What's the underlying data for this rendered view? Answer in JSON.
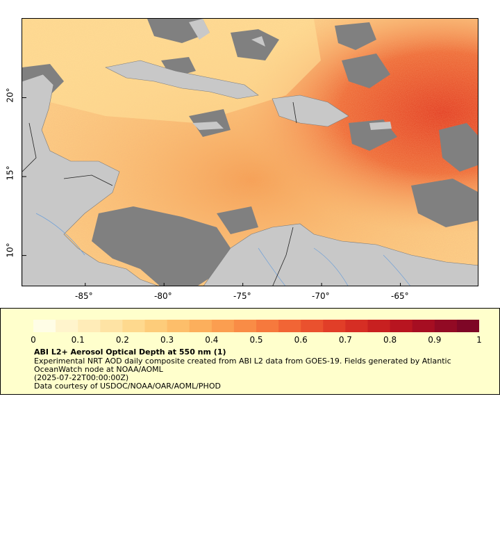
{
  "map": {
    "lon_ticks": [
      "-85°",
      "-80°",
      "-75°",
      "-70°",
      "-65°"
    ],
    "lat_ticks": [
      "20°",
      "15°",
      "10°"
    ],
    "lon_values": [
      -85,
      -80,
      -75,
      -70,
      -65
    ],
    "lat_values": [
      20,
      15,
      10
    ],
    "lon_range": [
      -89,
      -60
    ],
    "lat_range": [
      8,
      25
    ],
    "colors": {
      "land": "#c8c8c8",
      "no_data": "#808080",
      "low": "#ffe8a8",
      "mid": "#f9a855",
      "high": "#e0331a",
      "max": "#8b0020",
      "rivers": "#6fa0d8",
      "borders": "#7a7a7a"
    }
  },
  "legend": {
    "tick_labels": [
      "0",
      "0.1",
      "0.2",
      "0.3",
      "0.4",
      "0.5",
      "0.6",
      "0.7",
      "0.8",
      "0.9",
      "1"
    ],
    "title": "ABI L2+ Aerosol Optical Depth at 550 nm (1)",
    "description": "Experimental NRT AOD daily composite created from ABI L2 data from GOES-19. Fields generated by Atlantic OceanWatch node at NOAA/AOML",
    "date": "(2025-07-22T00:00:00Z)",
    "credit": "Data courtesy of USDOC/NOAA/OAR/AOML/PHOD",
    "colorbar_colors": [
      "#fffde6",
      "#fff4cc",
      "#ffecb8",
      "#fee3a4",
      "#fed98e",
      "#fdcc7a",
      "#fdbe6a",
      "#fcaf5c",
      "#fb9e50",
      "#f98c46",
      "#f6793d",
      "#f16535",
      "#ea512e",
      "#e13e28",
      "#d62e24",
      "#c82020",
      "#b81520",
      "#a60e22",
      "#920a24",
      "#7e0626"
    ]
  }
}
